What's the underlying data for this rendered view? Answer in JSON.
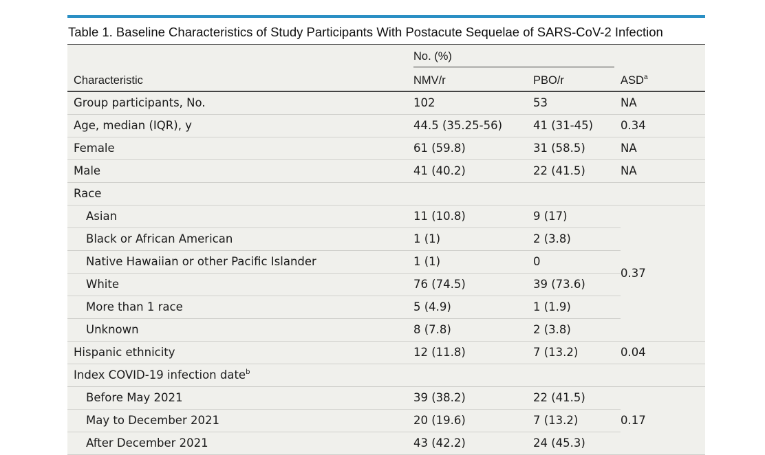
{
  "title": "Table 1. Baseline Characteristics of Study Participants With Postacute Sequelae of SARS-CoV-2 Infection",
  "header": {
    "characteristic": "Characteristic",
    "group_label": "No. (%)",
    "col_nmv": "NMV/r",
    "col_pbo": "PBO/r",
    "col_asd": "ASD",
    "col_asd_sup": "a"
  },
  "rows": {
    "group_participants": {
      "label": "Group participants, No.",
      "nmv": "102",
      "pbo": "53",
      "asd": "NA"
    },
    "age": {
      "label": "Age, median (IQR), y",
      "nmv": "44.5 (35.25-56)",
      "pbo": "41 (31-45)",
      "asd": "0.34"
    },
    "female": {
      "label": "Female",
      "nmv": "61 (59.8)",
      "pbo": "31 (58.5)",
      "asd": "NA"
    },
    "male": {
      "label": "Male",
      "nmv": "41 (40.2)",
      "pbo": "22 (41.5)",
      "asd": "NA"
    },
    "race": {
      "label": "Race"
    },
    "race_items": [
      {
        "label": "Asian",
        "nmv": "11 (10.8)",
        "pbo": "9 (17)"
      },
      {
        "label": "Black or African American",
        "nmv": "1 (1)",
        "pbo": "2 (3.8)"
      },
      {
        "label": "Native Hawaiian or other Pacific Islander",
        "nmv": "1 (1)",
        "pbo": "0"
      },
      {
        "label": "White",
        "nmv": "76 (74.5)",
        "pbo": "39 (73.6)"
      },
      {
        "label": "More than 1 race",
        "nmv": "5 (4.9)",
        "pbo": "1 (1.9)"
      },
      {
        "label": "Unknown",
        "nmv": "8 (7.8)",
        "pbo": "2 (3.8)"
      }
    ],
    "race_asd": "0.37",
    "hispanic": {
      "label": "Hispanic ethnicity",
      "nmv": "12 (11.8)",
      "pbo": "7 (13.2)",
      "asd": "0.04"
    },
    "infection_date": {
      "label": "Index COVID-19 infection date",
      "sup": "b"
    },
    "date_items": [
      {
        "label": "Before May 2021",
        "nmv": "39 (38.2)",
        "pbo": "22 (41.5)"
      },
      {
        "label": "May to December 2021",
        "nmv": "20 (19.6)",
        "pbo": "7 (13.2)"
      },
      {
        "label": "After December 2021",
        "nmv": "43 (42.2)",
        "pbo": "24 (45.3)"
      }
    ],
    "date_asd": "0.17"
  }
}
